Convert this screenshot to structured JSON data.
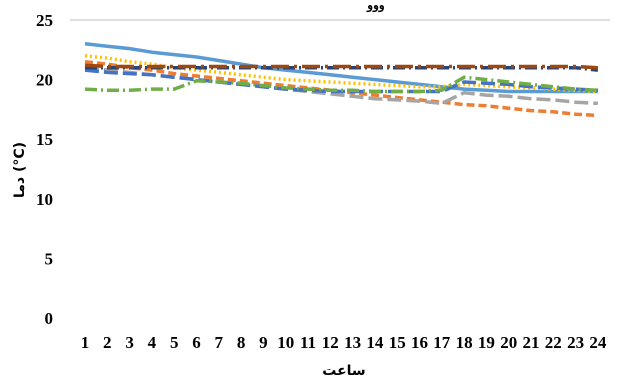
{
  "chart_data": {
    "type": "line",
    "title": "ووو",
    "xlabel": "ساعت",
    "ylabel": "دما (°C)",
    "ylim": [
      0,
      25
    ],
    "y_ticks": [
      "0",
      "5",
      "10",
      "15",
      "20",
      "25"
    ],
    "categories": [
      "1",
      "2",
      "3",
      "4",
      "5",
      "6",
      "7",
      "8",
      "9",
      "10",
      "11",
      "12",
      "13",
      "14",
      "15",
      "16",
      "17",
      "18",
      "19",
      "20",
      "21",
      "22",
      "23",
      "24"
    ],
    "grid": "top-border-only",
    "legend": "none",
    "series": [
      {
        "color": "#5B9BD5",
        "style": "solid",
        "values": [
          23.0,
          22.8,
          22.6,
          22.3,
          22.1,
          21.9,
          21.6,
          21.3,
          21.0,
          20.8,
          20.6,
          20.4,
          20.2,
          20.0,
          19.8,
          19.6,
          19.4,
          19.2,
          19.1,
          19.0,
          19.0,
          19.0,
          19.0,
          19.0
        ]
      },
      {
        "color": "#ED7D31",
        "style": "dash",
        "values": [
          21.5,
          21.3,
          21.0,
          20.8,
          20.5,
          20.3,
          20.1,
          19.9,
          19.7,
          19.5,
          19.3,
          19.1,
          18.9,
          18.7,
          18.5,
          18.3,
          18.1,
          17.9,
          17.8,
          17.6,
          17.4,
          17.3,
          17.1,
          17.0
        ]
      },
      {
        "color": "#A5A5A5",
        "style": "longdash",
        "values": [
          21.0,
          20.8,
          20.6,
          20.4,
          20.2,
          20.0,
          19.8,
          19.6,
          19.4,
          19.2,
          19.0,
          18.8,
          18.6,
          18.4,
          18.3,
          18.2,
          18.0,
          18.9,
          18.7,
          18.6,
          18.4,
          18.3,
          18.1,
          18.0
        ]
      },
      {
        "color": "#FFC000",
        "style": "dot",
        "values": [
          22.0,
          21.8,
          21.5,
          21.3,
          21.0,
          20.8,
          20.6,
          20.4,
          20.2,
          20.0,
          19.9,
          19.8,
          19.7,
          19.6,
          19.5,
          19.4,
          19.4,
          19.6,
          19.5,
          19.4,
          19.3,
          19.2,
          19.1,
          19.0
        ]
      },
      {
        "color": "#4472C4",
        "style": "longdash",
        "values": [
          20.8,
          20.6,
          20.5,
          20.4,
          20.2,
          20.0,
          19.8,
          19.6,
          19.4,
          19.2,
          19.1,
          19.0,
          19.0,
          19.0,
          19.0,
          19.0,
          19.0,
          19.8,
          19.7,
          19.6,
          19.4,
          19.3,
          19.2,
          19.1
        ]
      },
      {
        "color": "#70AD47",
        "style": "dashdot",
        "values": [
          19.2,
          19.1,
          19.1,
          19.2,
          19.2,
          19.9,
          19.8,
          19.7,
          19.5,
          19.3,
          19.2,
          19.1,
          19.1,
          19.0,
          19.0,
          19.0,
          19.1,
          20.2,
          20.0,
          19.8,
          19.6,
          19.4,
          19.2,
          19.1
        ]
      },
      {
        "color": "#264478",
        "style": "dashdot",
        "values": [
          21.0,
          21.0,
          21.0,
          21.0,
          21.0,
          21.0,
          21.0,
          21.0,
          21.0,
          21.0,
          21.0,
          21.0,
          21.0,
          21.0,
          21.0,
          21.0,
          21.0,
          21.0,
          21.0,
          21.0,
          21.0,
          21.0,
          21.0,
          20.8
        ]
      },
      {
        "color": "#9E480E",
        "style": "longdashdot",
        "values": [
          21.2,
          21.1,
          21.1,
          21.1,
          21.1,
          21.1,
          21.1,
          21.1,
          21.1,
          21.1,
          21.1,
          21.1,
          21.1,
          21.1,
          21.1,
          21.1,
          21.1,
          21.1,
          21.1,
          21.1,
          21.1,
          21.1,
          21.1,
          21.0
        ]
      }
    ]
  }
}
